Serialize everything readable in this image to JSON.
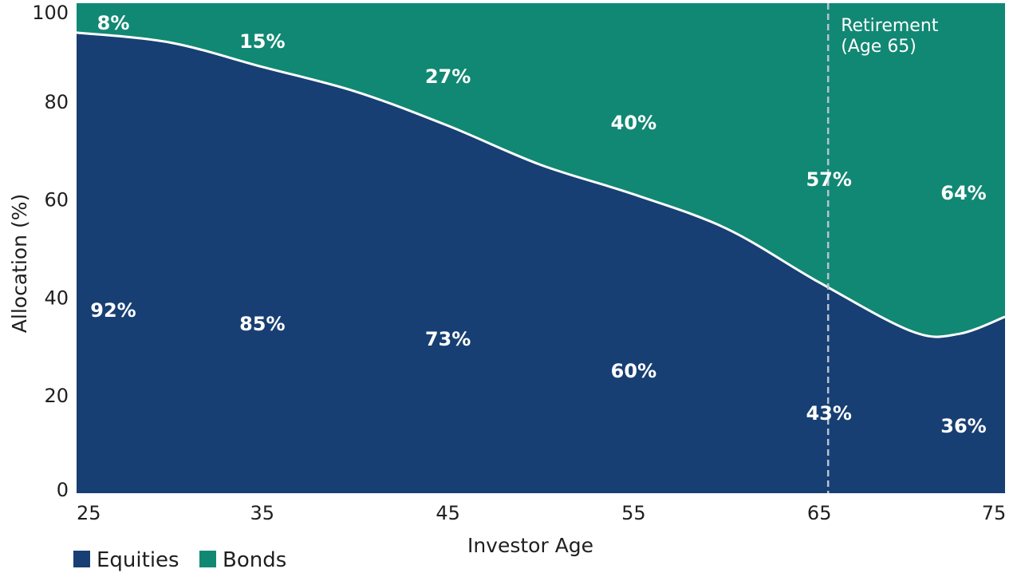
{
  "chart_data": {
    "type": "area",
    "stacked": true,
    "x": [
      25,
      35,
      45,
      55,
      65,
      75
    ],
    "series": [
      {
        "name": "Equities",
        "color": "#173f73",
        "values": [
          92,
          85,
          73,
          60,
          43,
          36
        ],
        "labels": [
          "92%",
          "85%",
          "73%",
          "60%",
          "43%",
          "36%"
        ]
      },
      {
        "name": "Bonds",
        "color": "#118873",
        "values": [
          8,
          15,
          27,
          40,
          57,
          64
        ],
        "labels": [
          "8%",
          "15%",
          "27%",
          "40%",
          "57%",
          "64%"
        ]
      }
    ],
    "curve_points": [
      {
        "x": 25,
        "y": 94
      },
      {
        "x": 30,
        "y": 92
      },
      {
        "x": 35,
        "y": 87
      },
      {
        "x": 40,
        "y": 82
      },
      {
        "x": 45,
        "y": 75
      },
      {
        "x": 50,
        "y": 67
      },
      {
        "x": 55,
        "y": 61
      },
      {
        "x": 60,
        "y": 54
      },
      {
        "x": 65,
        "y": 43
      },
      {
        "x": 70,
        "y": 33
      },
      {
        "x": 72.5,
        "y": 32.5
      },
      {
        "x": 75,
        "y": 36
      }
    ],
    "xlabel": "Investor Age",
    "ylabel": "Allocation (%)",
    "xlim": [
      25,
      75
    ],
    "ylim": [
      0,
      100
    ],
    "xticks": [
      25,
      35,
      45,
      55,
      65,
      75
    ],
    "yticks": [
      0,
      20,
      40,
      60,
      80,
      100
    ],
    "grid": false,
    "legend_position": "bottom-left",
    "annotation": {
      "x": 65,
      "line1": "Retirement",
      "line2": "(Age 65)",
      "style": "dashed-vertical"
    }
  }
}
